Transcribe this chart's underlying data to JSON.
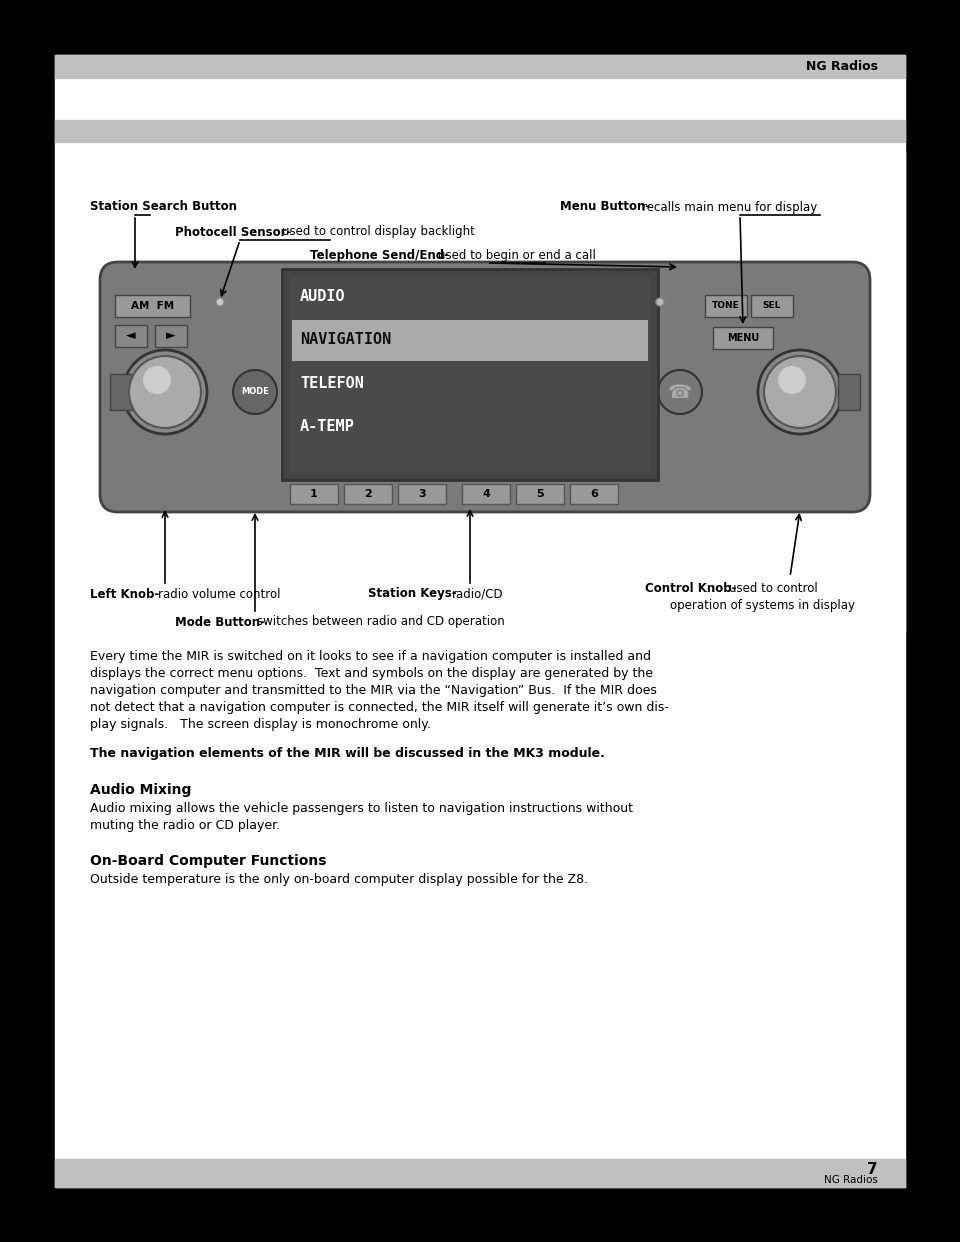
{
  "page_bg": "#ffffff",
  "outer_bg": "#000000",
  "title_text": "NG Radios",
  "page_number": "7",
  "footer_text": "NG Radios",
  "labels": {
    "station_search": "Station Search Button",
    "menu_button_bold": "Menu Button-",
    "menu_button_reg": "recalls main menu for display",
    "photocell_bold": "Photocell Sensor-",
    "photocell_reg": "used to control display backlight",
    "telephone_bold": "Telephone Send/End-",
    "telephone_reg": "used to begin or end a call",
    "left_knob_bold": "Left Knob-",
    "left_knob_reg": "radio volume control",
    "station_keys_bold": "Station Keys-",
    "station_keys_reg": "radio/CD",
    "mode_button_bold": "Mode Button-",
    "mode_button_reg": "switches between radio and CD operation",
    "control_knob_bold": "Control Knob-",
    "control_knob_reg1": "used to control",
    "control_knob_reg2": "operation of systems in display"
  },
  "display_lines": [
    "AUDIO",
    "NAVIGATION",
    "TELEFON",
    "A-TEMP"
  ],
  "body_text": [
    "Every time the MIR is switched on it looks to see if a navigation computer is installed and",
    "displays the correct menu options.  Text and symbols on the display are generated by the",
    "navigation computer and transmitted to the MIR via the “Navigation” Bus.  If the MIR does",
    "not detect that a navigation computer is connected, the MIR itself will generate it’s own dis-",
    "play signals.   The screen display is monochrome only."
  ],
  "bold_text": "The navigation elements of the MIR will be discussed in the MK3 module.",
  "section1_title": "Audio Mixing",
  "section1_body": [
    "Audio mixing allows the vehicle passengers to listen to navigation instructions without",
    "muting the radio or CD player."
  ],
  "section2_title": "On-Board Computer Functions",
  "section2_body": "Outside temperature is the only on-board computer display possible for the Z8."
}
